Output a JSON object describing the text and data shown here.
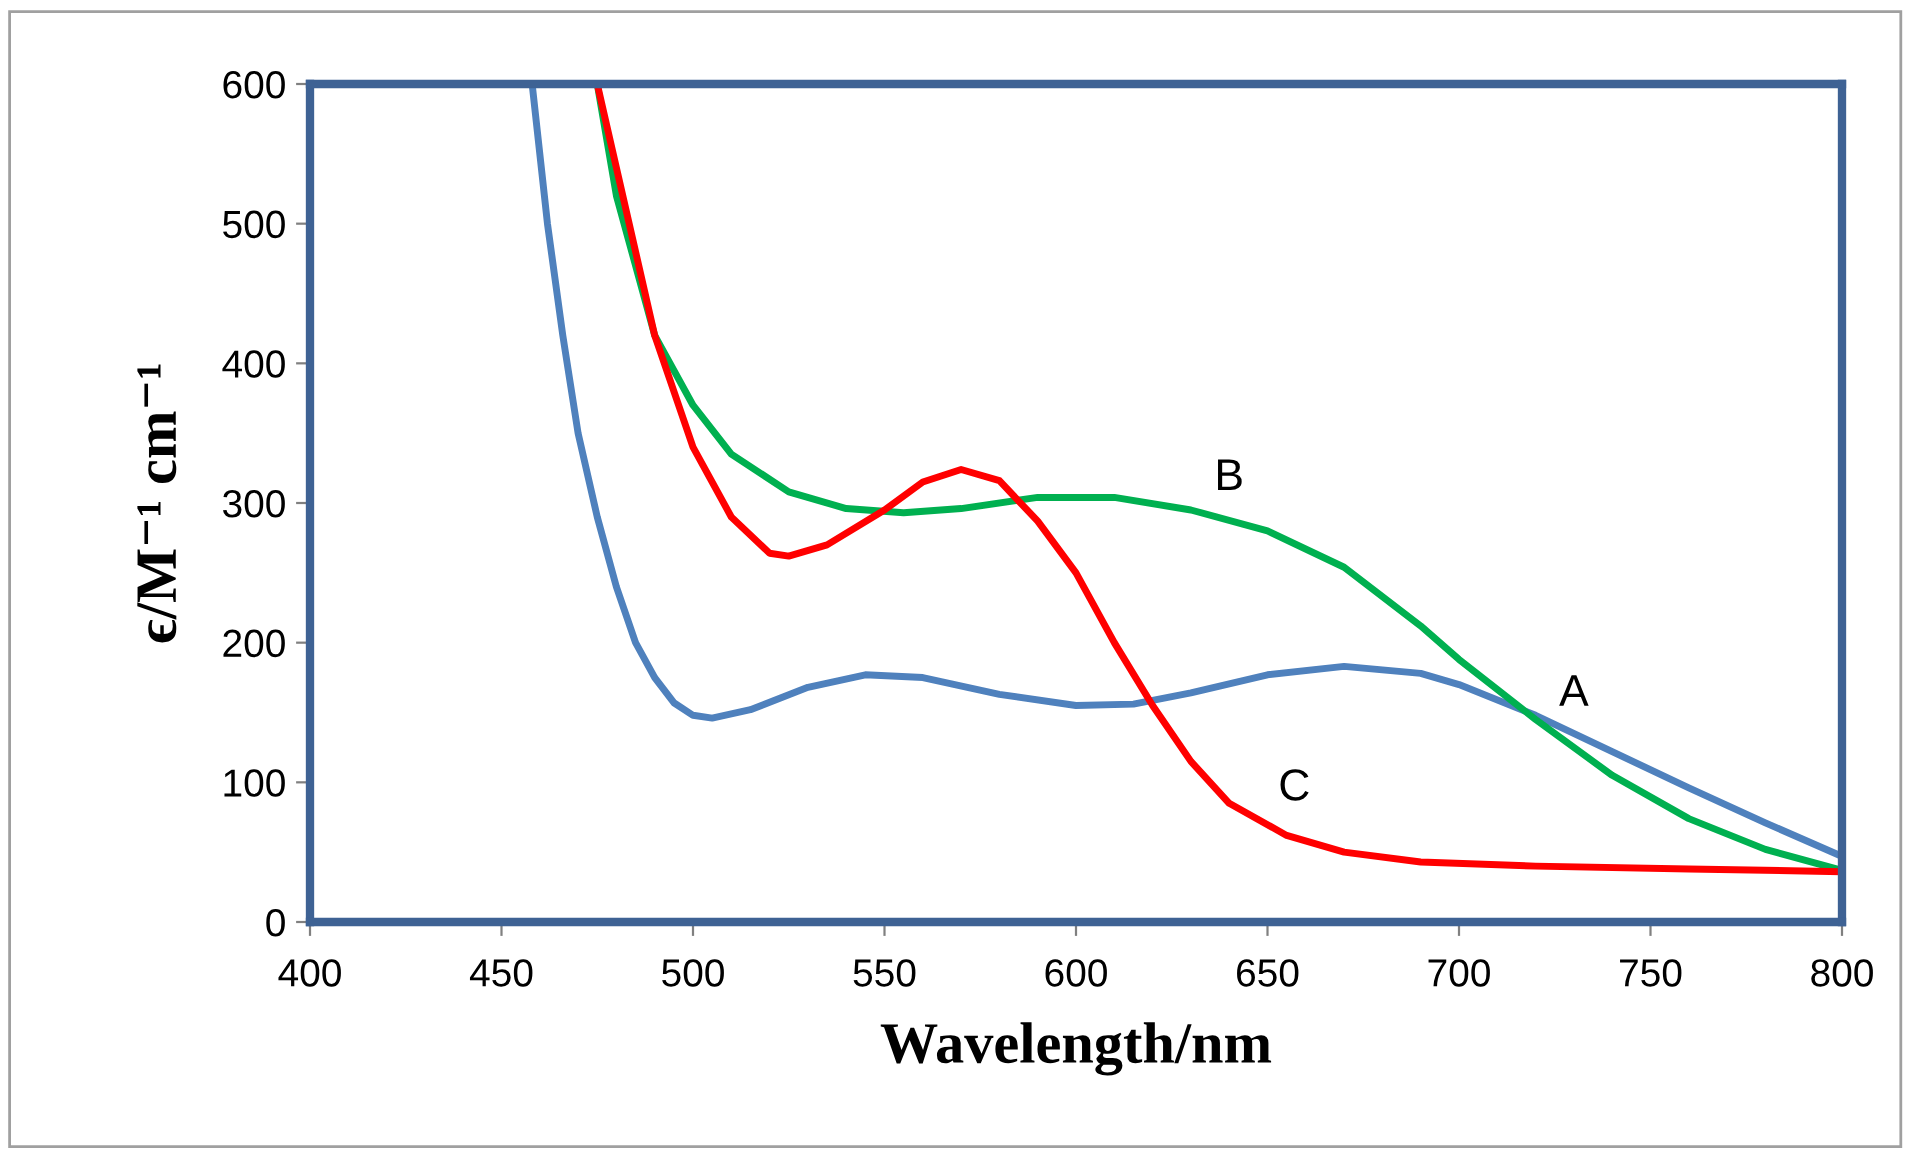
{
  "chart_data": {
    "type": "line",
    "xlabel": "Wavelength/nm",
    "ylabel": "ϵ/M⁻¹ cm⁻¹",
    "xlim": [
      400,
      800
    ],
    "ylim": [
      0,
      600
    ],
    "xticks": [
      400,
      450,
      500,
      550,
      600,
      650,
      700,
      750,
      800
    ],
    "yticks": [
      0,
      100,
      200,
      300,
      400,
      500,
      600
    ],
    "grid": false,
    "marker": "none",
    "line_style": "solid",
    "series": [
      {
        "name": "A",
        "color": "#4f81bd",
        "x": [
          458,
          462,
          466,
          470,
          475,
          480,
          485,
          490,
          495,
          500,
          505,
          515,
          530,
          545,
          560,
          580,
          600,
          615,
          630,
          650,
          670,
          690,
          700,
          720,
          740,
          760,
          780,
          800
        ],
        "values": [
          600,
          500,
          420,
          350,
          290,
          240,
          200,
          175,
          157,
          148,
          146,
          152,
          168,
          177,
          175,
          163,
          155,
          156,
          164,
          177,
          183,
          178,
          170,
          148,
          122,
          96,
          71,
          47
        ]
      },
      {
        "name": "B",
        "color": "#00b050",
        "x": [
          475,
          480,
          485,
          490,
          500,
          510,
          525,
          540,
          555,
          570,
          590,
          610,
          630,
          650,
          670,
          690,
          700,
          720,
          740,
          760,
          780,
          800
        ],
        "values": [
          600,
          520,
          470,
          420,
          370,
          335,
          308,
          296,
          293,
          296,
          304,
          304,
          295,
          280,
          254,
          212,
          188,
          145,
          105,
          74,
          52,
          37
        ]
      },
      {
        "name": "C",
        "color": "#ff0000",
        "x": [
          475,
          480,
          485,
          490,
          500,
          510,
          520,
          525,
          535,
          550,
          560,
          570,
          580,
          590,
          600,
          610,
          620,
          630,
          640,
          655,
          670,
          690,
          720,
          760,
          800
        ],
        "values": [
          600,
          540,
          480,
          420,
          340,
          290,
          264,
          262,
          270,
          295,
          315,
          324,
          316,
          287,
          250,
          200,
          155,
          115,
          85,
          62,
          50,
          43,
          40,
          38,
          36
        ]
      }
    ]
  }
}
